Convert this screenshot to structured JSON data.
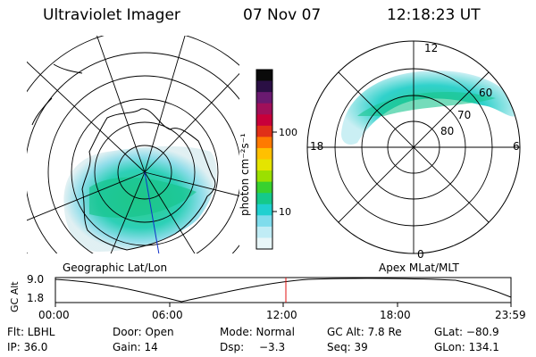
{
  "header": {
    "instrument": "Ultraviolet Imager",
    "date": "07 Nov 07",
    "time": "12:18:23 UT"
  },
  "colorbar": {
    "unit_label": "photon cm⁻²s⁻¹",
    "ticks": [
      "100",
      "10"
    ],
    "colors": [
      "#0a0a0a",
      "#2a0f44",
      "#6a1a70",
      "#a0105a",
      "#c8003a",
      "#e03018",
      "#ff7a00",
      "#ffc000",
      "#e4e400",
      "#9be000",
      "#38d12f",
      "#15c98b",
      "#20d0d0",
      "#7fdcec",
      "#c0ecf5",
      "#e8f6f8"
    ]
  },
  "left_map": {
    "caption": "Geographic Lat/Lon"
  },
  "right_map": {
    "caption": "Apex MLat/MLT",
    "mlt_labels": {
      "top": "12",
      "left": "18",
      "right": "6",
      "bottom": "0"
    },
    "lat_labels": [
      "60",
      "70",
      "80"
    ]
  },
  "altitude_plot": {
    "ylabel": "GC Alt",
    "y_ticks": [
      "9.0",
      "1.8"
    ],
    "x_ticks": [
      "00:00",
      "06:00",
      "12:00",
      "18:00",
      "23:59"
    ],
    "current_time_marker": "12:18"
  },
  "status": {
    "flt": "Flt: LBHL",
    "door": "Door: Open",
    "mode": "Mode: Normal",
    "gc_alt": "GC Alt: 7.8 Re",
    "glat": "GLat: −80.9",
    "ip": "IP: 36.0",
    "gain": "Gain: 14",
    "dsp_label": "Dsp:",
    "dsp_value": "−3.3",
    "seq": "Seq: 39",
    "glon": "GLon: 134.1"
  }
}
